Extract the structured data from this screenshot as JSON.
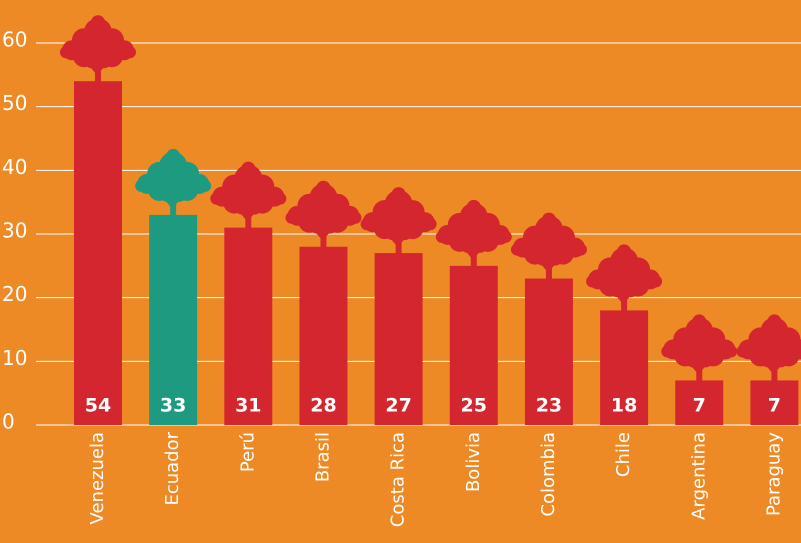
{
  "chart_data": {
    "type": "bar",
    "categories": [
      "Venezuela",
      "Ecuador",
      "Perú",
      "Brasil",
      "Costa Rica",
      "Bolivia",
      "Colombia",
      "Chile",
      "Argentina",
      "Paraguay"
    ],
    "values": [
      54,
      33,
      31,
      28,
      27,
      25,
      23,
      18,
      7,
      7
    ],
    "colors": [
      "#d4262e",
      "#1e9a80",
      "#d4262e",
      "#d4262e",
      "#d4262e",
      "#d4262e",
      "#d4262e",
      "#d4262e",
      "#d4262e",
      "#d4262e"
    ],
    "ylim": [
      0,
      60
    ],
    "yticks": [
      0,
      10,
      20,
      30,
      40,
      50,
      60
    ],
    "grid": true
  }
}
